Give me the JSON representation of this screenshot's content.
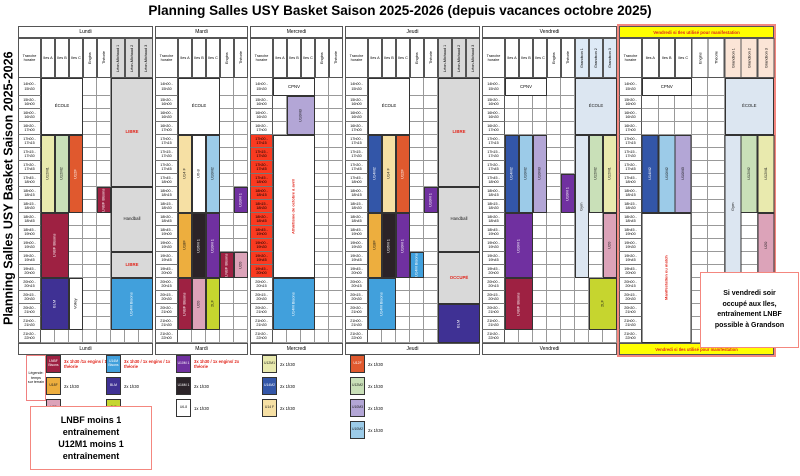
{
  "title": "Planning Salles USY Basket Saison 2025-2026 (depuis vacances octobre 2025)",
  "side_title": "Planning Salles USY Basket Saison 2025-2026",
  "times": [
    "14h00 -\n15h30",
    "15h30 -\n16h00",
    "16h00 -\n16h30",
    "16h30 -\n17h00",
    "17h00 -\n17h15",
    "17h15 -\n17h30",
    "17h30 -\n17h45",
    "17h45 -\n18h00",
    "18h00 -\n18h15",
    "18h15 -\n18h30",
    "18h30 -\n18h45",
    "18h45 -\n19h00",
    "19h00 -\n19h30",
    "19h30 -\n19h45",
    "19h45 -\n20h00",
    "20h00 -\n20h15",
    "20h15 -\n20h30",
    "20h30 -\n21h00",
    "21h00 -\n21h30",
    "21h30 -\n22h00"
  ],
  "palette": {
    "white": {
      "bg": "#FFFFFF",
      "fg": "#000000"
    },
    "whitered": {
      "bg": "#FFFFFF",
      "fg": "#E1251B"
    },
    "gray": {
      "bg": "#D9D9D9",
      "fg": "#1a1a1a"
    },
    "grayred": {
      "bg": "#D9D9D9",
      "fg": "#E1251B"
    },
    "ecole": {
      "bg": "#DCE6F1",
      "fg": "#1a1a1a"
    },
    "lnbf": {
      "bg": "#9E2142",
      "fg": "#FFFFFF"
    },
    "u18f": {
      "bg": "#EDAE3E",
      "fg": "#1a1a1a"
    },
    "u20": {
      "bg": "#DCA3B9",
      "fg": "#1a1a1a"
    },
    "u14mb": {
      "bg": "#41A0DC",
      "fg": "#FFFFFF"
    },
    "blm": {
      "bg": "#3F3194",
      "fg": "#FFFFFF"
    },
    "lf2": {
      "bg": "#C6D52F",
      "fg": "#1a1a1a"
    },
    "u10m1": {
      "bg": "#7030A0",
      "fg": "#FFFFFF"
    },
    "u16m1": {
      "bg": "#2B2328",
      "fg": "#FFFFFF"
    },
    "u68": {
      "bg": "#FFFFFF",
      "fg": "#1a1a1a"
    },
    "u12m1": {
      "bg": "#E9EAAE",
      "fg": "#1a1a1a"
    },
    "u14m2": {
      "bg": "#3356A8",
      "fg": "#FFFFFF"
    },
    "u14f": {
      "bg": "#F6E0A4",
      "fg": "#1a1a1a"
    },
    "u12f": {
      "bg": "#E0592E",
      "fg": "#FFFFFF"
    },
    "u12m2": {
      "bg": "#C9E0B8",
      "fg": "#1a1a1a"
    },
    "u10m3": {
      "bg": "#B3A6D6",
      "fg": "#1a1a1a"
    },
    "u10m2": {
      "bg": "#9CCBE8",
      "fg": "#1a1a1a"
    }
  },
  "header_bg": {
    "gray": "#D9D9D9",
    "gblue": "#DEEAF6",
    "gpeach": "#FBE5D6"
  },
  "days": [
    {
      "name": "Lundi",
      "cols": [
        {
          "h": "Tranche\nhoraire"
        },
        {
          "h": "Iles A"
        },
        {
          "h": "Iles B"
        },
        {
          "h": "Iles C"
        },
        {
          "h": "Engins",
          "rot": 1
        },
        {
          "h": "Théorie",
          "rot": 1
        },
        {
          "h": "Léon-Michaud 1",
          "rot": 1,
          "bg": "gray"
        },
        {
          "h": "Léon-Michaud 2",
          "rot": 1,
          "bg": "gray"
        },
        {
          "h": "Léon-Michaud 3",
          "rot": 1,
          "bg": "gray"
        }
      ],
      "blocks": [
        {
          "c": 2,
          "cs": 3,
          "r": 1,
          "rs": 4,
          "t": "ÉCOLE",
          "k": "white"
        },
        {
          "c": 2,
          "r": 5,
          "rs": 6,
          "t": "U12M1",
          "k": "u12m1",
          "rot": 1
        },
        {
          "c": 3,
          "r": 5,
          "rs": 6,
          "t": "U12M2",
          "k": "u12m2",
          "rot": 1
        },
        {
          "c": 4,
          "r": 5,
          "rs": 6,
          "t": "U12F",
          "k": "u12f",
          "rot": 1
        },
        {
          "c": 6,
          "r": 9,
          "rs": 2,
          "t": "LNBF Bisons",
          "k": "lnbf",
          "rot": 1
        },
        {
          "c": 2,
          "cs": 2,
          "r": 11,
          "rs": 5,
          "t": "LNBF Bisons",
          "k": "lnbf",
          "rot": 1
        },
        {
          "c": 2,
          "cs": 2,
          "r": 16,
          "rs": 4,
          "t": "BLM",
          "k": "blm",
          "rot": 1
        },
        {
          "c": 4,
          "r": 16,
          "rs": 4,
          "t": "Volley",
          "k": "white",
          "rot": 1
        },
        {
          "c": 7,
          "cs": 3,
          "r": 1,
          "rs": 8,
          "t": "LIBRE",
          "k": "grayred",
          "bold": 1
        },
        {
          "c": 7,
          "cs": 3,
          "r": 9,
          "rs": 5,
          "t": "Handball",
          "k": "gray"
        },
        {
          "c": 7,
          "cs": 3,
          "r": 14,
          "rs": 2,
          "t": "LIBRE",
          "k": "grayred",
          "bold": 1
        },
        {
          "c": 7,
          "cs": 3,
          "r": 16,
          "rs": 4,
          "t": "U14M Bisons",
          "k": "u14mb",
          "rot": 1
        }
      ]
    },
    {
      "name": "Mardi",
      "cols": [
        {
          "h": "Tranche\nhoraire"
        },
        {
          "h": "Iles A"
        },
        {
          "h": "Iles B"
        },
        {
          "h": "Iles C"
        },
        {
          "h": "Engins",
          "rot": 1
        },
        {
          "h": "Théorie",
          "rot": 1
        }
      ],
      "blocks": [
        {
          "c": 2,
          "cs": 3,
          "r": 1,
          "rs": 4,
          "t": "ÉCOLE",
          "k": "white"
        },
        {
          "c": 2,
          "r": 5,
          "rs": 6,
          "t": "U14 F",
          "k": "u14f",
          "rot": 1
        },
        {
          "c": 3,
          "r": 5,
          "rs": 6,
          "t": "U6-8",
          "k": "u68",
          "rot": 1
        },
        {
          "c": 4,
          "r": 5,
          "rs": 6,
          "t": "U10M2",
          "k": "u10m2",
          "rot": 1
        },
        {
          "c": 6,
          "r": 9,
          "rs": 2,
          "t": "U10M 1",
          "k": "u10m1",
          "rot": 1
        },
        {
          "c": 2,
          "r": 11,
          "rs": 5,
          "t": "U18F",
          "k": "u18f",
          "rot": 1
        },
        {
          "c": 3,
          "r": 11,
          "rs": 5,
          "t": "U16M 1",
          "k": "u16m1",
          "rot": 1
        },
        {
          "c": 4,
          "r": 11,
          "rs": 5,
          "t": "U10M 1",
          "k": "u10m1",
          "rot": 1
        },
        {
          "c": 5,
          "r": 14,
          "rs": 2,
          "t": "LNBF Bisons",
          "k": "lnbf",
          "rot": 1
        },
        {
          "c": 6,
          "r": 14,
          "rs": 2,
          "t": "U20",
          "k": "u20",
          "rot": 1
        },
        {
          "c": 2,
          "r": 16,
          "rs": 4,
          "t": "LNBF Bisons",
          "k": "lnbf",
          "rot": 1
        },
        {
          "c": 3,
          "r": 16,
          "rs": 4,
          "t": "U20",
          "k": "u20",
          "rot": 1
        },
        {
          "c": 4,
          "r": 16,
          "rs": 4,
          "t": "2LF",
          "k": "lf2",
          "rot": 1
        }
      ]
    },
    {
      "name": "Mercredi",
      "red_rows": [
        5,
        15
      ],
      "cols": [
        {
          "h": "Tranche\nhoraire"
        },
        {
          "h": "Iles A"
        },
        {
          "h": "Iles B"
        },
        {
          "h": "Iles C"
        },
        {
          "h": "Engins",
          "rot": 1
        },
        {
          "h": "Théorie",
          "rot": 1
        }
      ],
      "blocks": [
        {
          "c": 2,
          "cs": 3,
          "r": 1,
          "rs": 1,
          "t": "CPNV",
          "k": "white"
        },
        {
          "c": 3,
          "cs": 2,
          "r": 2,
          "rs": 3,
          "t": "U10M3",
          "k": "u10m3",
          "rot": 1
        },
        {
          "c": 2,
          "cs": 3,
          "r": 5,
          "rs": 11,
          "t": "Athlétisme de octobre à avril",
          "k": "whitered",
          "rot": 1,
          "bold": 1
        },
        {
          "c": 2,
          "cs": 3,
          "r": 16,
          "rs": 4,
          "t": "U14M Bisons",
          "k": "u14mb",
          "rot": 1
        }
      ]
    },
    {
      "name": "Jeudi",
      "cols": [
        {
          "h": "Tranche\nhoraire"
        },
        {
          "h": "Iles A"
        },
        {
          "h": "Iles B"
        },
        {
          "h": "Iles C"
        },
        {
          "h": "Engins",
          "rot": 1
        },
        {
          "h": "Théorie",
          "rot": 1
        },
        {
          "h": "Léon-Michaud 1",
          "rot": 1,
          "bg": "gray"
        },
        {
          "h": "Léon-Michaud 2",
          "rot": 1,
          "bg": "gray"
        },
        {
          "h": "Léon-Michaud 3",
          "rot": 1,
          "bg": "gray"
        }
      ],
      "blocks": [
        {
          "c": 2,
          "cs": 3,
          "r": 1,
          "rs": 4,
          "t": "ÉCOLE",
          "k": "white"
        },
        {
          "c": 2,
          "r": 5,
          "rs": 6,
          "t": "U14M2",
          "k": "u14m2",
          "rot": 1
        },
        {
          "c": 3,
          "r": 5,
          "rs": 6,
          "t": "U14 F",
          "k": "u14f",
          "rot": 1
        },
        {
          "c": 4,
          "r": 5,
          "rs": 6,
          "t": "U12F",
          "k": "u12f",
          "rot": 1
        },
        {
          "c": 6,
          "r": 9,
          "rs": 2,
          "t": "U10M 1",
          "k": "u10m1",
          "rot": 1
        },
        {
          "c": 2,
          "r": 11,
          "rs": 5,
          "t": "U18F",
          "k": "u18f",
          "rot": 1
        },
        {
          "c": 3,
          "r": 11,
          "rs": 5,
          "t": "U16M 1",
          "k": "u16m1",
          "rot": 1
        },
        {
          "c": 4,
          "r": 11,
          "rs": 5,
          "t": "U10M 1",
          "k": "u10m1",
          "rot": 1
        },
        {
          "c": 5,
          "r": 14,
          "rs": 2,
          "t": "U14M Bisons",
          "k": "u14mb",
          "rot": 1
        },
        {
          "c": 2,
          "cs": 2,
          "r": 16,
          "rs": 4,
          "t": "U14M Bisons",
          "k": "u14mb",
          "rot": 1
        },
        {
          "c": 7,
          "cs": 3,
          "r": 1,
          "rs": 8,
          "t": "LIBRE",
          "k": "grayred",
          "bold": 1
        },
        {
          "c": 7,
          "cs": 3,
          "r": 9,
          "rs": 5,
          "t": "Handball",
          "k": "gray"
        },
        {
          "c": 7,
          "cs": 3,
          "r": 14,
          "rs": 4,
          "t": "OCCUPÉ",
          "k": "grayred",
          "bold": 1
        },
        {
          "c": 7,
          "cs": 3,
          "r": 18,
          "rs": 3,
          "t": "BLM",
          "k": "blm",
          "rot": 1
        }
      ]
    },
    {
      "name": "Vendredi",
      "cols": [
        {
          "h": "Tranche\nhoraire"
        },
        {
          "h": "Iles A"
        },
        {
          "h": "Iles B"
        },
        {
          "h": "Iles C"
        },
        {
          "h": "Engins",
          "rot": 1
        },
        {
          "h": "Théorie",
          "rot": 1
        },
        {
          "h": "Grandson 1",
          "rot": 1,
          "bg": "gblue"
        },
        {
          "h": "Grandson 2",
          "rot": 1,
          "bg": "gblue"
        },
        {
          "h": "Grandson 3",
          "rot": 1,
          "bg": "gblue"
        }
      ],
      "blocks": [
        {
          "c": 2,
          "cs": 3,
          "r": 1,
          "rs": 1,
          "t": "CPNV",
          "k": "white"
        },
        {
          "c": 2,
          "r": 5,
          "rs": 6,
          "t": "U14M2",
          "k": "u14m2",
          "rot": 1
        },
        {
          "c": 3,
          "r": 5,
          "rs": 6,
          "t": "U10M2",
          "k": "u10m2",
          "rot": 1
        },
        {
          "c": 4,
          "r": 5,
          "rs": 6,
          "t": "U10M3",
          "k": "u10m3",
          "rot": 1
        },
        {
          "c": 6,
          "r": 8,
          "rs": 3,
          "t": "U10M 1",
          "k": "u10m1",
          "rot": 1
        },
        {
          "c": 2,
          "cs": 2,
          "r": 11,
          "rs": 5,
          "t": "U10M 1",
          "k": "u10m1",
          "rot": 1
        },
        {
          "c": 2,
          "cs": 2,
          "r": 16,
          "rs": 4,
          "t": "LNBF Bisons",
          "k": "lnbf",
          "rot": 1
        },
        {
          "c": 7,
          "cs": 3,
          "r": 1,
          "rs": 4,
          "t": "ÉCOLE",
          "k": "ecole"
        },
        {
          "c": 7,
          "r": 5,
          "rs": 11,
          "t": "Gym",
          "k": "ecole",
          "rot": 1
        },
        {
          "c": 8,
          "r": 5,
          "rs": 6,
          "t": "U12M2",
          "k": "u12m2",
          "rot": 1
        },
        {
          "c": 9,
          "r": 5,
          "rs": 6,
          "t": "U12M1",
          "k": "u12m1",
          "rot": 1
        },
        {
          "c": 9,
          "r": 11,
          "rs": 5,
          "t": "U20",
          "k": "u20",
          "rot": 1
        },
        {
          "c": 8,
          "cs": 2,
          "r": 16,
          "rs": 4,
          "t": "2LF",
          "k": "lf2",
          "rot": 1
        }
      ]
    },
    {
      "name": "Vendredi si Iles utilisé pour manifestation",
      "alt": 1,
      "colw": 16.5,
      "cols": [
        {
          "h": "Tranche\nhoraire"
        },
        {
          "h": "Iles A"
        },
        {
          "h": "Iles B"
        },
        {
          "h": "Iles C"
        },
        {
          "h": "Engins",
          "rot": 1
        },
        {
          "h": "Théorie",
          "rot": 1
        },
        {
          "h": "Grandson 1",
          "rot": 1,
          "bg": "gpeach"
        },
        {
          "h": "Grandson 2",
          "rot": 1,
          "bg": "gpeach"
        },
        {
          "h": "Grandson 3",
          "rot": 1,
          "bg": "gpeach"
        }
      ],
      "blocks": [
        {
          "c": 2,
          "cs": 3,
          "r": 1,
          "rs": 1,
          "t": "CPNV",
          "k": "white"
        },
        {
          "c": 2,
          "r": 5,
          "rs": 6,
          "t": "U14M2",
          "k": "u14m2",
          "rot": 1
        },
        {
          "c": 3,
          "r": 5,
          "rs": 6,
          "t": "U10M2",
          "k": "u10m2",
          "rot": 1
        },
        {
          "c": 4,
          "r": 5,
          "rs": 6,
          "t": "U10M3",
          "k": "u10m3",
          "rot": 1
        },
        {
          "c": 2,
          "cs": 3,
          "r": 11,
          "rs": 10,
          "t": "Manifestation ou match",
          "k": "whitered",
          "rot": 1,
          "bold": 1
        },
        {
          "c": 7,
          "cs": 3,
          "r": 1,
          "rs": 4,
          "t": "ÉCOLE",
          "k": "ecole"
        },
        {
          "c": 7,
          "r": 5,
          "rs": 11,
          "t": "Gym",
          "k": "ecole",
          "rot": 1
        },
        {
          "c": 8,
          "r": 5,
          "rs": 6,
          "t": "U12M2",
          "k": "u12m2",
          "rot": 1
        },
        {
          "c": 9,
          "r": 5,
          "rs": 6,
          "t": "U12M1",
          "k": "u12m1",
          "rot": 1
        },
        {
          "c": 9,
          "r": 11,
          "rs": 5,
          "t": "U20",
          "k": "u20",
          "rot": 1
        },
        {
          "c": 7,
          "r": 16,
          "rs": 4,
          "t": "LNBF Bisons",
          "k": "lnbf",
          "rot": 1
        },
        {
          "c": 8,
          "r": 16,
          "rs": 4,
          "t": "2LF",
          "k": "lf2",
          "rot": 1
        }
      ]
    }
  ],
  "legend": {
    "label": "Légende:\ntemps\nsur terrain",
    "groups": [
      {
        "items": [
          {
            "team": "LNBF\nBisons",
            "k": "lnbf",
            "text": "3x 1h30 /1x engins / 1x théorie",
            "red": true
          },
          {
            "team": "U18F",
            "k": "u18f",
            "text": "2x 1h30"
          },
          {
            "team": "U20",
            "k": "u20",
            "text": "2x 2h"
          }
        ]
      },
      {
        "items": [
          {
            "team": "U14M\nBisons",
            "k": "u14mb",
            "text": "3x 1h30 / 1x engins / 1x théorie",
            "red": true
          },
          {
            "team": "BLM",
            "k": "blm",
            "text": "2x 1h30"
          },
          {
            "team": "2LF",
            "k": "lf2",
            "text": "1x 1h30"
          }
        ]
      },
      {
        "items": [
          {
            "team": "U10M 1",
            "k": "u10m1",
            "text": "3x 1h30 / 1x engins/ 2x théorie",
            "red": true
          },
          {
            "team": "U16M 1",
            "k": "u16m1",
            "text": "2x 1h30"
          },
          {
            "team": "U6-8",
            "k": "u68",
            "text": "1x 1h30"
          }
        ]
      },
      {
        "items": [
          {
            "team": "U12M1",
            "k": "u12m1",
            "text": "2x 1h30"
          },
          {
            "team": "U14M2",
            "k": "u14m2",
            "text": "2x 1h30"
          },
          {
            "team": "U14 F",
            "k": "u14f",
            "text": "2x 1h30"
          }
        ]
      },
      {
        "items": [
          {
            "team": "U12F",
            "k": "u12f",
            "text": "2x 1h30"
          },
          {
            "team": "U12M2",
            "k": "u12m2",
            "text": "2x 1h30"
          },
          {
            "team": "U10M3",
            "k": "u10m3",
            "text": "2x 1h30"
          },
          {
            "team": "U10M2",
            "k": "u10m2",
            "text": "2x 1h30"
          }
        ]
      }
    ]
  },
  "notes": {
    "bottom_left": "LNBF moins 1\nentraînement\nU12M1 moins 1\nentraînement",
    "right": "Si vendredi soir\noccupé aux Iles,\nentraînement LNBF\npossible à Grandson"
  }
}
